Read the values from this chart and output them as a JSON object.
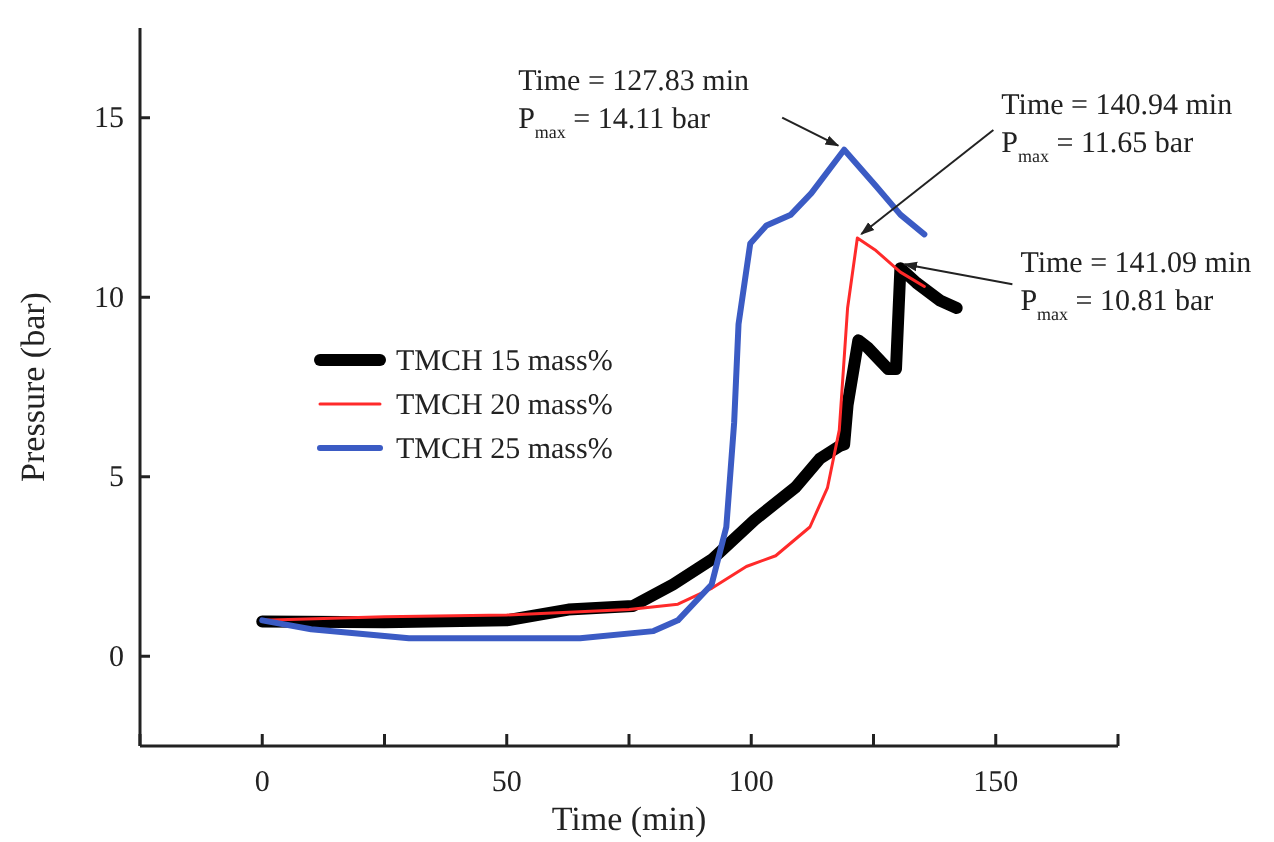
{
  "chart_data": {
    "type": "line",
    "xlabel": "Time (min)",
    "ylabel": "Pressure (bar)",
    "xlim": [
      -25,
      175
    ],
    "ylim": [
      -2.5,
      17.5
    ],
    "xticks": [
      {
        "value": -25,
        "label": null
      },
      0,
      {
        "value": 25,
        "label": null
      },
      50,
      {
        "value": 75,
        "label": null
      },
      100,
      {
        "value": 125,
        "label": null
      },
      150,
      {
        "value": 175,
        "label": null
      }
    ],
    "yticks": [
      0,
      5,
      10,
      15
    ],
    "legend": "left",
    "grid": false,
    "marker": "none",
    "line_style": "solid",
    "series": [
      {
        "name": "TMCH 15 mass%",
        "color": "#000000",
        "x": [
          0,
          25,
          50,
          62.6,
          75.8,
          84,
          92,
          100.7,
          109,
          114,
          118,
          119,
          119.7,
          121.9,
          123.8,
          128,
          129.6,
          130.5,
          133.8,
          138.7,
          142
        ],
        "values": [
          0.97,
          0.95,
          1.0,
          1.3,
          1.4,
          2.0,
          2.7,
          3.8,
          4.7,
          5.5,
          5.85,
          5.9,
          7.0,
          8.8,
          8.6,
          8.0,
          8.0,
          10.81,
          10.4,
          9.9,
          9.7
        ]
      },
      {
        "name": "TMCH 20 mass%",
        "color": "#ff2a2a",
        "x": [
          0,
          25,
          50,
          75,
          85,
          92,
          99,
          105,
          112,
          115.6,
          118,
          119.7,
          121.7,
          125.5,
          130.5,
          135.4
        ],
        "values": [
          1.0,
          1.1,
          1.15,
          1.3,
          1.45,
          1.9,
          2.5,
          2.8,
          3.6,
          4.7,
          6.3,
          9.7,
          11.65,
          11.3,
          10.7,
          10.3
        ]
      },
      {
        "name": "TMCH 25 mass%",
        "color": "#3b5bc4",
        "x": [
          0,
          10,
          30,
          50,
          65,
          80,
          85,
          91.9,
          94.9,
          96.5,
          97.4,
          99.8,
          103.1,
          108.1,
          112.3,
          119,
          125.5,
          130.5,
          135.4
        ],
        "values": [
          1.0,
          0.75,
          0.5,
          0.5,
          0.5,
          0.7,
          1.0,
          2.0,
          3.6,
          6.5,
          9.25,
          11.5,
          12.0,
          12.3,
          12.9,
          14.11,
          13.1,
          12.3,
          11.75
        ]
      }
    ],
    "annotations": [
      {
        "text": "Time = 127.83 min\nP$_{max}$ = 14.11 bar",
        "x": 119,
        "y": 14.11
      },
      {
        "text": "Time = 140.94 min\nP$_{max}$ = 11.65 bar",
        "x": 121.7,
        "y": 11.65
      },
      {
        "text": "Time = 141.09 min\nP$_{max}$ = 10.81 bar",
        "x": 130.5,
        "y": 10.81
      }
    ]
  }
}
